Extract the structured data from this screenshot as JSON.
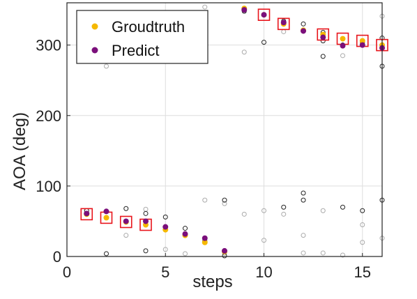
{
  "chart_data": {
    "type": "scatter",
    "xlabel": "steps",
    "ylabel": "AOA (deg)",
    "xlim": [
      0,
      16
    ],
    "ylim": [
      0,
      360
    ],
    "xticks": [
      0,
      5,
      10,
      15
    ],
    "yticks": [
      0,
      100,
      200,
      300
    ],
    "grid": true,
    "legend_position": "top-left",
    "series": [
      {
        "name": "Groudtruth",
        "color": "#F5B800",
        "marker": "filled-circle",
        "x": [
          1,
          2,
          3,
          4,
          5,
          6,
          7,
          8,
          9,
          10,
          11,
          12,
          13,
          14,
          15,
          16
        ],
        "y": [
          60,
          55,
          49,
          45,
          38,
          30,
          20,
          7,
          352,
          343,
          330,
          321,
          315,
          309,
          306,
          300
        ]
      },
      {
        "name": "Predict",
        "color": "#7B0F7B",
        "marker": "filled-circle",
        "x": [
          1,
          2,
          3,
          4,
          5,
          6,
          7,
          8,
          9,
          10,
          11,
          12,
          13,
          14,
          15,
          16
        ],
        "y": [
          61,
          64,
          50,
          50,
          42,
          32,
          26,
          8,
          350,
          343,
          332,
          320,
          311,
          299,
          300,
          296
        ]
      }
    ],
    "highlight_boxes": {
      "color": "#E8141B",
      "x": [
        1,
        2,
        3,
        4,
        10,
        11,
        13,
        14,
        15,
        16
      ],
      "y": [
        60,
        55,
        49,
        45,
        343,
        330,
        315,
        309,
        306,
        300
      ]
    },
    "background_candidates": {
      "dark": {
        "color": "#222222",
        "x": [
          1,
          2,
          2,
          3,
          3,
          4,
          4,
          5,
          6,
          6,
          7,
          8,
          8,
          9,
          10,
          11,
          11,
          12,
          12,
          12,
          13,
          13,
          13,
          14,
          14,
          14,
          15,
          15,
          16,
          16,
          16
        ],
        "y": [
          65,
          4,
          64,
          68,
          50,
          61,
          8,
          56,
          40,
          30,
          22,
          1,
          80,
          348,
          304,
          70,
          334,
          80,
          90,
          330,
          284,
          306,
          318,
          300,
          300,
          70,
          65,
          303,
          270,
          80,
          310
        ]
      },
      "light": {
        "color": "#AAAAAA",
        "x": [
          2,
          3,
          4,
          5,
          6,
          7,
          7,
          8,
          8,
          9,
          9,
          10,
          10,
          11,
          11,
          12,
          12,
          13,
          13,
          14,
          14,
          15,
          15,
          16,
          16
        ],
        "y": [
          270,
          30,
          67,
          10,
          4,
          80,
          354,
          75,
          5,
          290,
          60,
          23,
          65,
          319,
          60,
          5,
          30,
          5,
          65,
          285,
          2,
          20,
          45,
          341,
          26
        ]
      }
    }
  }
}
